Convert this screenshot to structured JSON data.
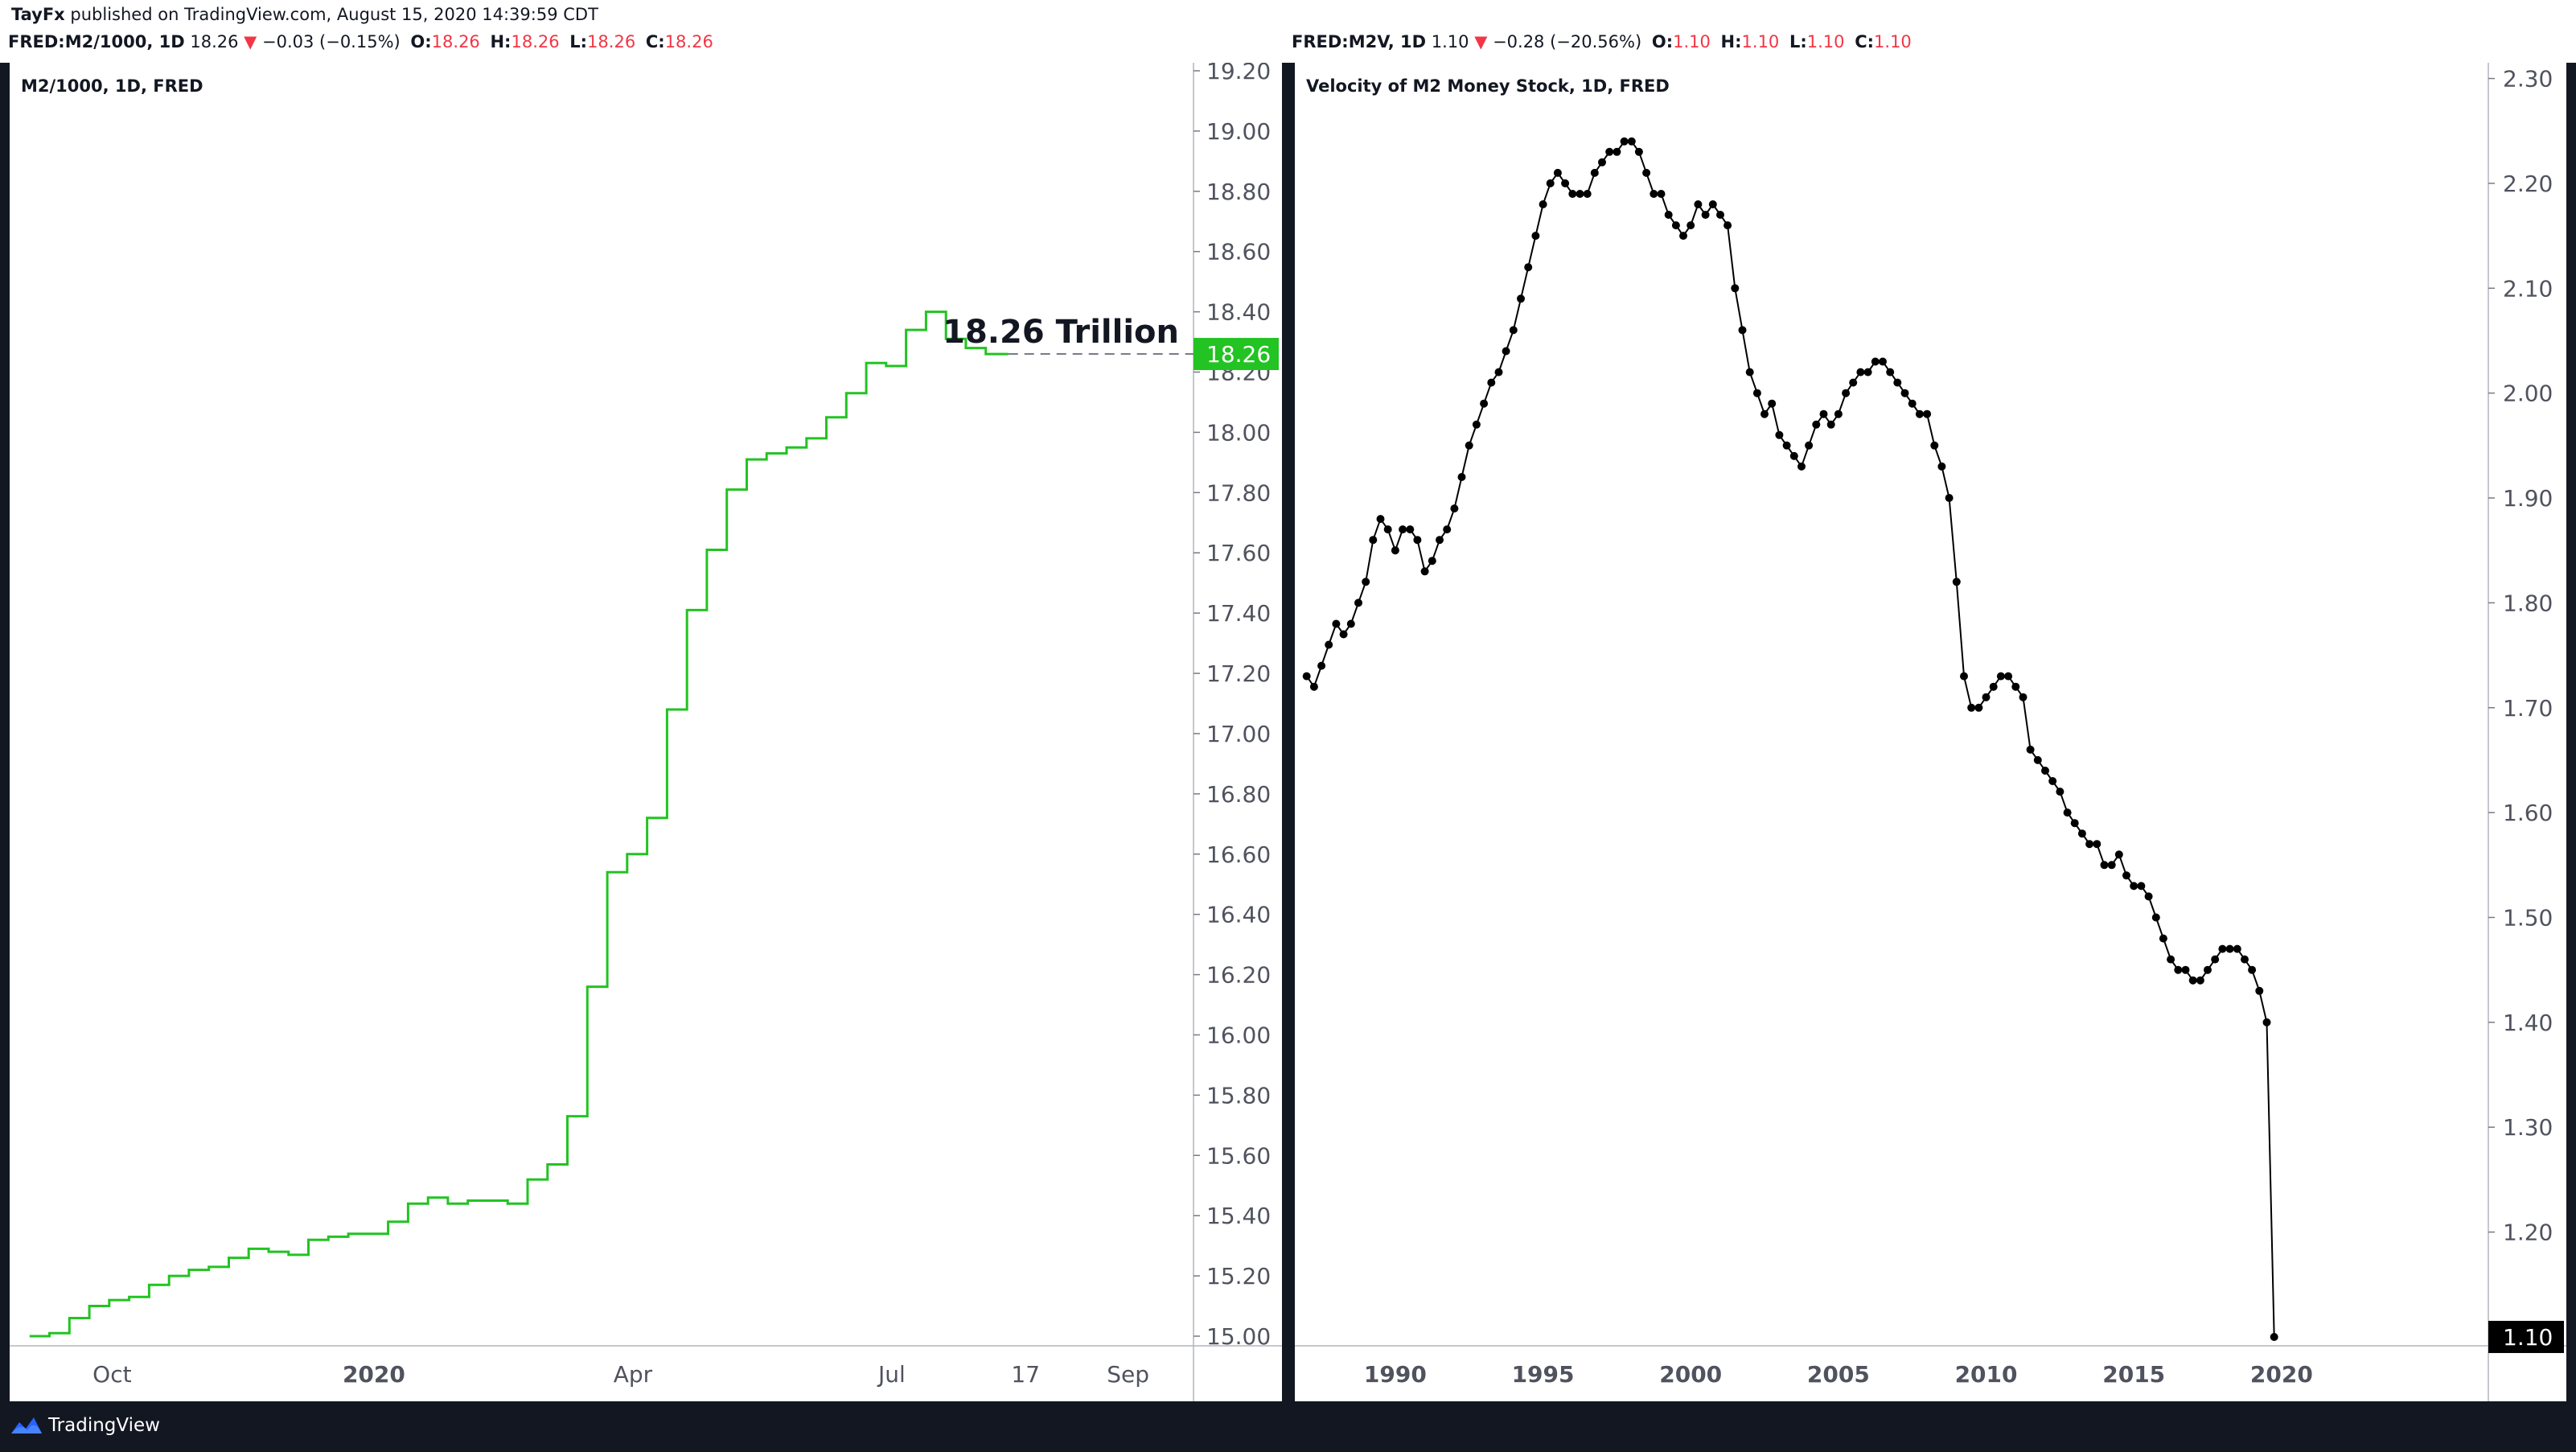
{
  "publisher": {
    "user": "TayFx",
    "text": " published on TradingView.com, August 15, 2020 14:39:59 CDT"
  },
  "brand": {
    "name": "TradingView"
  },
  "colors": {
    "green": "#22c322",
    "red": "#f23645",
    "black": "#000000",
    "background": "#131722"
  },
  "left_legend": {
    "symbol": "FRED:M2/1000, 1D",
    "last": "18.26",
    "arrow": "▼",
    "change": "−0.03 (−0.15%)",
    "o_label": "O:",
    "o": "18.26",
    "h_label": "H:",
    "h": "18.26",
    "l_label": "L:",
    "l": "18.26",
    "c_label": "C:",
    "c": "18.26"
  },
  "right_legend": {
    "symbol": "FRED:M2V, 1D",
    "last": "1.10",
    "arrow": "▼",
    "change": "−0.28 (−20.56%)",
    "o_label": "O:",
    "o": "1.10",
    "h_label": "H:",
    "h": "1.10",
    "l_label": "L:",
    "l": "1.10",
    "c_label": "C:",
    "c": "1.10"
  },
  "chart_data": [
    {
      "type": "line",
      "style": "step",
      "title": "M2/1000, 1D, FRED",
      "annotation": "18.26 Trillion",
      "last_value_label": "18.26",
      "last_value": 18.26,
      "ylim": [
        15.0,
        19.2
      ],
      "yticks": [
        "19.20",
        "19.00",
        "18.80",
        "18.60",
        "18.40",
        "18.20",
        "18.00",
        "17.80",
        "17.60",
        "17.40",
        "17.20",
        "17.00",
        "16.80",
        "16.60",
        "16.40",
        "16.20",
        "16.00",
        "15.80",
        "15.60",
        "15.40",
        "15.20",
        "15.00"
      ],
      "xlim": [
        "2019-08-26",
        "2020-10-15"
      ],
      "xticks": [
        {
          "label": "Oct",
          "x": "2019-10-01"
        },
        {
          "label": "2020",
          "x": "2020-01-01"
        },
        {
          "label": "Apr",
          "x": "2020-04-01"
        },
        {
          "label": "Jul",
          "x": "2020-07-01"
        },
        {
          "label": "17",
          "x": "2020-08-17"
        },
        {
          "label": "Sep",
          "x": "2020-09-22"
        }
      ],
      "series": [
        {
          "color": "#22c322",
          "x": [
            "2019-09-02",
            "2019-09-09",
            "2019-09-16",
            "2019-09-23",
            "2019-09-30",
            "2019-10-07",
            "2019-10-14",
            "2019-10-21",
            "2019-10-28",
            "2019-11-04",
            "2019-11-11",
            "2019-11-18",
            "2019-11-25",
            "2019-12-02",
            "2019-12-09",
            "2019-12-16",
            "2019-12-23",
            "2019-12-30",
            "2020-01-06",
            "2020-01-13",
            "2020-01-20",
            "2020-01-27",
            "2020-02-03",
            "2020-02-10",
            "2020-02-17",
            "2020-02-24",
            "2020-03-02",
            "2020-03-09",
            "2020-03-16",
            "2020-03-23",
            "2020-03-30",
            "2020-04-06",
            "2020-04-13",
            "2020-04-20",
            "2020-04-27",
            "2020-05-04",
            "2020-05-11",
            "2020-05-18",
            "2020-05-25",
            "2020-06-01",
            "2020-06-08",
            "2020-06-15",
            "2020-06-22",
            "2020-06-29",
            "2020-07-06",
            "2020-07-13",
            "2020-07-20",
            "2020-07-27",
            "2020-08-03"
          ],
          "y": [
            15.0,
            15.01,
            15.06,
            15.1,
            15.12,
            15.13,
            15.17,
            15.2,
            15.22,
            15.23,
            15.26,
            15.29,
            15.28,
            15.27,
            15.32,
            15.33,
            15.34,
            15.34,
            15.38,
            15.44,
            15.46,
            15.44,
            15.45,
            15.45,
            15.44,
            15.52,
            15.57,
            15.73,
            16.16,
            16.54,
            16.6,
            16.72,
            17.08,
            17.41,
            17.61,
            17.81,
            17.91,
            17.93,
            17.95,
            17.98,
            18.05,
            18.13,
            18.23,
            18.22,
            18.34,
            18.4,
            18.31,
            18.28,
            18.26
          ]
        }
      ]
    },
    {
      "type": "line",
      "style": "line-with-markers",
      "title": "Velocity of M2 Money Stock, 1D, FRED",
      "last_value_label": "1.10",
      "last_value": 1.1,
      "ylim": [
        1.09,
        2.315
      ],
      "yticks": [
        "2.30",
        "2.20",
        "2.10",
        "2.00",
        "1.90",
        "1.80",
        "1.70",
        "1.60",
        "1.50",
        "1.40",
        "1.30",
        "1.20",
        "1.10"
      ],
      "xlim": [
        1986.6,
        2027.0
      ],
      "xticks": [
        "1990",
        "1995",
        "2000",
        "2005",
        "2010",
        "2015",
        "2020"
      ],
      "series": [
        {
          "color": "#000000",
          "start": 1987.0,
          "step": 0.25,
          "values": [
            1.73,
            1.72,
            1.74,
            1.76,
            1.78,
            1.77,
            1.78,
            1.8,
            1.82,
            1.86,
            1.88,
            1.87,
            1.85,
            1.87,
            1.87,
            1.86,
            1.83,
            1.84,
            1.86,
            1.87,
            1.89,
            1.92,
            1.95,
            1.97,
            1.99,
            2.01,
            2.02,
            2.04,
            2.06,
            2.09,
            2.12,
            2.15,
            2.18,
            2.2,
            2.21,
            2.2,
            2.19,
            2.19,
            2.19,
            2.21,
            2.22,
            2.23,
            2.23,
            2.24,
            2.24,
            2.23,
            2.21,
            2.19,
            2.19,
            2.17,
            2.16,
            2.15,
            2.16,
            2.18,
            2.17,
            2.18,
            2.17,
            2.16,
            2.1,
            2.06,
            2.02,
            2.0,
            1.98,
            1.99,
            1.96,
            1.95,
            1.94,
            1.93,
            1.95,
            1.97,
            1.98,
            1.97,
            1.98,
            2.0,
            2.01,
            2.02,
            2.02,
            2.03,
            2.03,
            2.02,
            2.01,
            2.0,
            1.99,
            1.98,
            1.98,
            1.95,
            1.93,
            1.9,
            1.82,
            1.73,
            1.7,
            1.7,
            1.71,
            1.72,
            1.73,
            1.73,
            1.72,
            1.71,
            1.66,
            1.65,
            1.64,
            1.63,
            1.62,
            1.6,
            1.59,
            1.58,
            1.57,
            1.57,
            1.55,
            1.55,
            1.56,
            1.54,
            1.53,
            1.53,
            1.52,
            1.5,
            1.48,
            1.46,
            1.45,
            1.45,
            1.44,
            1.44,
            1.45,
            1.46,
            1.47,
            1.47,
            1.47,
            1.46,
            1.45,
            1.43,
            1.4,
            1.1
          ]
        }
      ]
    }
  ]
}
